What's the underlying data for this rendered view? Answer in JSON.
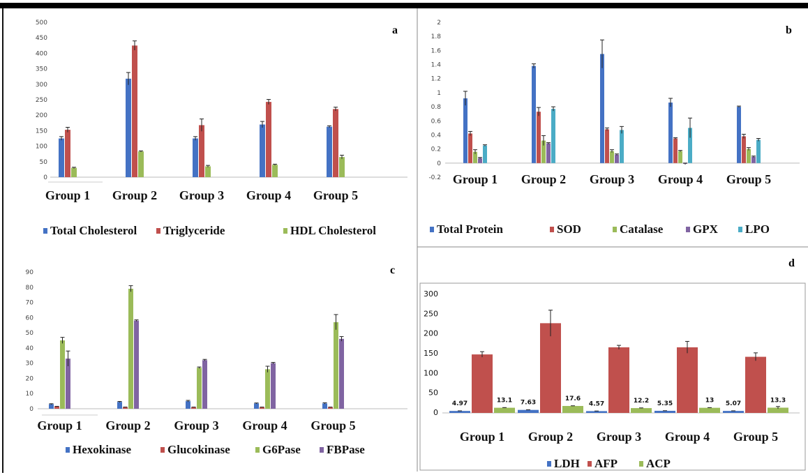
{
  "panels": [
    {
      "letter": "a",
      "chart_data": {
        "type": "bar",
        "categories": [
          "Group 1",
          "Group 2",
          "Group 3",
          "Group 4",
          "Group 5"
        ],
        "series": [
          {
            "name": "Total Cholesterol",
            "color": "#4472C4",
            "values": [
              125,
              318,
              125,
              170,
              163
            ],
            "errors": [
              6,
              20,
              6,
              10,
              3
            ]
          },
          {
            "name": "Triglyceride",
            "color": "#C0504D",
            "values": [
              153,
              425,
              168,
              243,
              220
            ],
            "errors": [
              8,
              15,
              20,
              8,
              6
            ]
          },
          {
            "name": "HDL Cholesterol",
            "color": "#9BBB59",
            "values": [
              30,
              83,
              35,
              40,
              65
            ],
            "errors": [
              2,
              2,
              3,
              2,
              6
            ]
          }
        ],
        "ylim": [
          0,
          500
        ],
        "yticks": [
          "0",
          "50",
          "100",
          "150",
          "200",
          "250",
          "300",
          "350",
          "400",
          "450",
          "500"
        ],
        "grid": false,
        "legend": "bottom"
      }
    },
    {
      "letter": "b",
      "chart_data": {
        "type": "bar",
        "categories": [
          "Group 1",
          "Group 2",
          "Group 3",
          "Group 4",
          "Group 5"
        ],
        "series": [
          {
            "name": "Total Protein",
            "color": "#4472C4",
            "values": [
              0.92,
              1.38,
              1.55,
              0.86,
              0.8
            ],
            "errors": [
              0.1,
              0.03,
              0.2,
              0.06,
              0.01
            ]
          },
          {
            "name": "SOD",
            "color": "#C0504D",
            "values": [
              0.42,
              0.73,
              0.48,
              0.35,
              0.38
            ],
            "errors": [
              0.03,
              0.06,
              0.02,
              0.01,
              0.03
            ]
          },
          {
            "name": "Catalase",
            "color": "#9BBB59",
            "values": [
              0.16,
              0.32,
              0.17,
              0.17,
              0.2
            ],
            "errors": [
              0.03,
              0.07,
              0.02,
              0.01,
              0.02
            ]
          },
          {
            "name": "GPX",
            "color": "#8064A2",
            "values": [
              0.07,
              0.28,
              0.12,
              -0.01,
              0.09
            ],
            "errors": [
              0.01,
              0.01,
              0.01,
              0.01,
              0.01
            ]
          },
          {
            "name": "LPO",
            "color": "#4BACC6",
            "values": [
              0.25,
              0.77,
              0.47,
              0.5,
              0.33
            ],
            "errors": [
              0.01,
              0.03,
              0.05,
              0.14,
              0.02
            ]
          }
        ],
        "ylim": [
          -0.2,
          2
        ],
        "yticks": [
          "-0.2",
          "0",
          "0.2",
          "0.4",
          "0.6",
          "0.8",
          "1",
          "1.2",
          "1.4",
          "1.6",
          "1.8",
          "2"
        ],
        "grid": false,
        "legend": "bottom"
      }
    },
    {
      "letter": "c",
      "chart_data": {
        "type": "bar",
        "categories": [
          "Group 1",
          "Group 2",
          "Group 3",
          "Group 4",
          "Group 5"
        ],
        "series": [
          {
            "name": "Hexokinase",
            "color": "#4472C4",
            "values": [
              3,
              4.5,
              5,
              3.5,
              3.5
            ],
            "errors": [
              0.3,
              0.3,
              0.5,
              0.3,
              0.4
            ]
          },
          {
            "name": "Glucokinase",
            "color": "#C0504D",
            "values": [
              1.5,
              1,
              1,
              1,
              1
            ],
            "errors": [
              0.1,
              0.1,
              0.1,
              0.1,
              0.1
            ]
          },
          {
            "name": "G6Pase",
            "color": "#9BBB59",
            "values": [
              45,
              79,
              27,
              26,
              57
            ],
            "errors": [
              2,
              2,
              0.5,
              2,
              5
            ]
          },
          {
            "name": "FBPase",
            "color": "#8064A2",
            "values": [
              33,
              58,
              32,
              30,
              46
            ],
            "errors": [
              5,
              0.5,
              0.5,
              0.5,
              1.5
            ]
          }
        ],
        "ylim": [
          0,
          90
        ],
        "yticks": [
          "0",
          "10",
          "20",
          "30",
          "40",
          "50",
          "60",
          "70",
          "80",
          "90"
        ],
        "grid": false,
        "legend": "bottom"
      }
    },
    {
      "letter": "d",
      "chart_data": {
        "type": "bar",
        "categories": [
          "Group 1",
          "Group 2",
          "Group 3",
          "Group 4",
          "Group 5"
        ],
        "series": [
          {
            "name": "LDH",
            "color": "#4472C4",
            "values": [
              4.97,
              7.63,
              4.57,
              5.35,
              5.07
            ],
            "errors": [
              0.3,
              0.3,
              0.3,
              0.3,
              0.3
            ],
            "labels": [
              "4.97",
              "7.63",
              "4.57",
              "5.35",
              "5.07"
            ]
          },
          {
            "name": "AFP",
            "color": "#C0504D",
            "values": [
              148,
              227,
              166,
              166,
              142
            ],
            "errors": [
              7,
              33,
              5,
              15,
              10
            ],
            "labels": []
          },
          {
            "name": "ACP",
            "color": "#9BBB59",
            "values": [
              13.1,
              17.6,
              12.2,
              13,
              13.3
            ],
            "errors": [
              0.5,
              0.5,
              0.5,
              0.5,
              3
            ],
            "labels": [
              "13.1",
              "17.6",
              "12.2",
              "13",
              "13.3"
            ]
          }
        ],
        "ylim": [
          0,
          300
        ],
        "yticks": [
          "0",
          "50",
          "100",
          "150",
          "200",
          "250",
          "300"
        ],
        "grid": false,
        "legend": "bottom"
      }
    }
  ]
}
